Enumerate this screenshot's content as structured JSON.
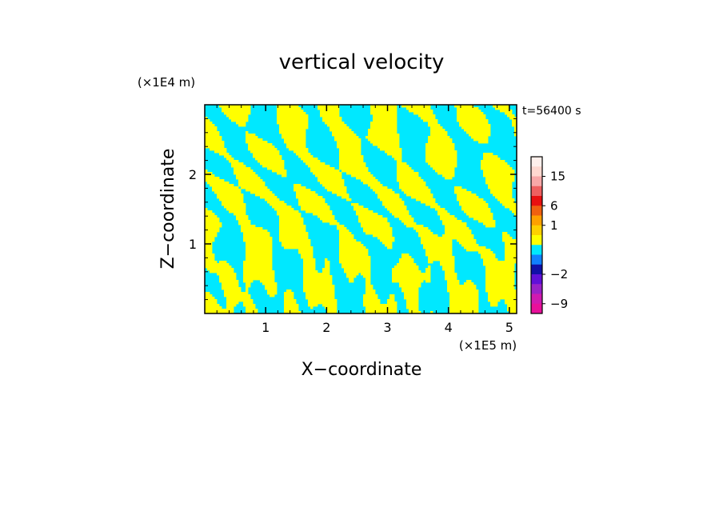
{
  "chart_data": {
    "type": "heatmap",
    "title": "vertical velocity",
    "xlabel": "X−coordinate",
    "ylabel": "Z−coordinate",
    "x_unit": "(×1E5 m)",
    "y_unit": "(×1E4 m)",
    "time_label": "t=56400 s",
    "xlim": [
      0,
      5.12
    ],
    "ylim": [
      0,
      3.0
    ],
    "x_ticks": [
      1,
      2,
      3,
      4,
      5
    ],
    "y_ticks": [
      1,
      2
    ],
    "x_tick_labels": [
      "1",
      "2",
      "3",
      "4",
      "5"
    ],
    "y_tick_labels": [
      "1",
      "2"
    ],
    "x_minor_step": 0.2,
    "y_minor_step": 0.2,
    "dominant_colors": {
      "positive": "#ffff00",
      "negative": "#00e8ff"
    },
    "colorbar": {
      "levels": [
        {
          "value": -12,
          "color": "#e8109a"
        },
        {
          "value": -9,
          "color": "#d01ab0"
        },
        {
          "value": -6,
          "color": "#9a22c8"
        },
        {
          "value": -4,
          "color": "#6010d8"
        },
        {
          "value": -2,
          "color": "#1010a8"
        },
        {
          "value": -1,
          "color": "#1080ff"
        },
        {
          "value": -0.5,
          "color": "#00e8ff"
        },
        {
          "value": 0,
          "color": "#ffff00"
        },
        {
          "value": 0.5,
          "color": "#ffd000"
        },
        {
          "value": 1,
          "color": "#ffa000"
        },
        {
          "value": 3,
          "color": "#f06010"
        },
        {
          "value": 6,
          "color": "#e81010"
        },
        {
          "value": 9,
          "color": "#ee6060"
        },
        {
          "value": 12,
          "color": "#f8a8a8"
        },
        {
          "value": 15,
          "color": "#ffd8d0"
        },
        {
          "value": 18,
          "color": "#fff0ec"
        }
      ],
      "labels": [
        {
          "value": 15,
          "text": "15"
        },
        {
          "value": 6,
          "text": "6"
        },
        {
          "value": 1,
          "text": "1"
        },
        {
          "value": -2,
          "text": "−2"
        },
        {
          "value": -9,
          "text": "−9"
        }
      ]
    }
  }
}
